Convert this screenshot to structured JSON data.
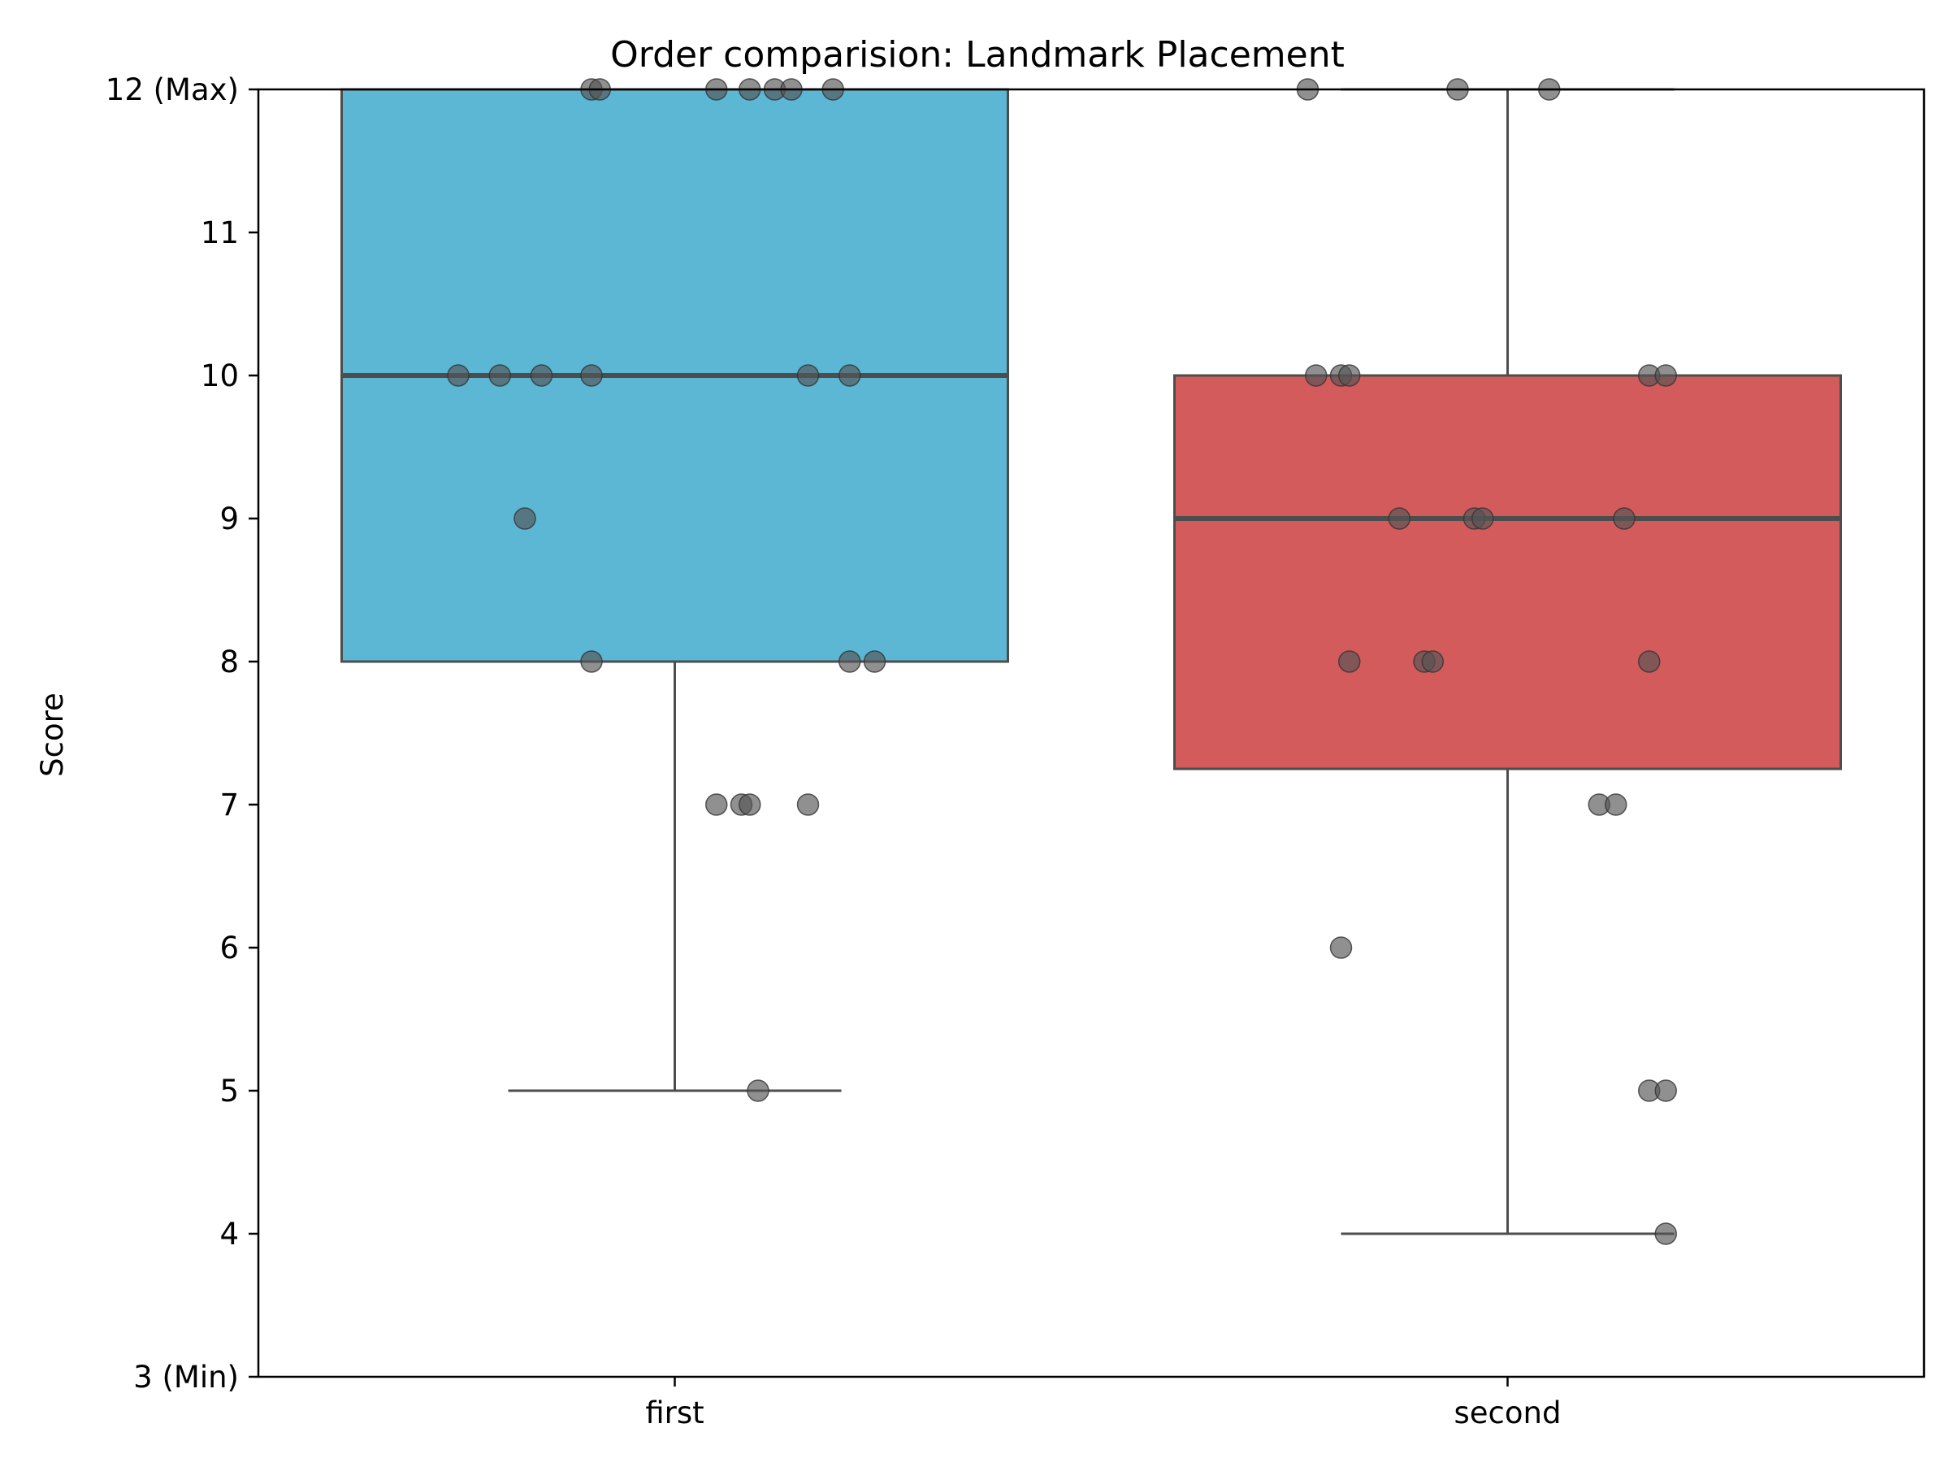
{
  "chart_data": {
    "type": "box",
    "title": "Order comparision: Landmark Placement",
    "xlabel": "",
    "ylabel": "Score",
    "ylim": [
      3,
      12
    ],
    "yticks": [
      {
        "value": 3,
        "label": "3 (Min)"
      },
      {
        "value": 4,
        "label": "4"
      },
      {
        "value": 5,
        "label": "5"
      },
      {
        "value": 6,
        "label": "6"
      },
      {
        "value": 7,
        "label": "7"
      },
      {
        "value": 8,
        "label": "8"
      },
      {
        "value": 9,
        "label": "9"
      },
      {
        "value": 10,
        "label": "10"
      },
      {
        "value": 11,
        "label": "11"
      },
      {
        "value": 12,
        "label": "12 (Max)"
      }
    ],
    "categories": [
      "first",
      "second"
    ],
    "grid": false,
    "point_color": "#555555",
    "boxes": [
      {
        "category": "first",
        "color": "#5BB7D3",
        "whisker_low": 5,
        "q1": 8,
        "median": 10,
        "q3": 12,
        "whisker_high": 12,
        "points": [
          {
            "y": 12,
            "jitter": -0.1
          },
          {
            "y": 12,
            "jitter": -0.09
          },
          {
            "y": 12,
            "jitter": 0.05
          },
          {
            "y": 12,
            "jitter": 0.09
          },
          {
            "y": 12,
            "jitter": 0.12
          },
          {
            "y": 12,
            "jitter": 0.14
          },
          {
            "y": 12,
            "jitter": 0.19
          },
          {
            "y": 10,
            "jitter": -0.26
          },
          {
            "y": 10,
            "jitter": -0.21
          },
          {
            "y": 10,
            "jitter": -0.16
          },
          {
            "y": 10,
            "jitter": -0.1
          },
          {
            "y": 10,
            "jitter": 0.16
          },
          {
            "y": 10,
            "jitter": 0.21
          },
          {
            "y": 9,
            "jitter": -0.18
          },
          {
            "y": 8,
            "jitter": -0.1
          },
          {
            "y": 8,
            "jitter": 0.21
          },
          {
            "y": 8,
            "jitter": 0.24
          },
          {
            "y": 7,
            "jitter": 0.05
          },
          {
            "y": 7,
            "jitter": 0.08
          },
          {
            "y": 7,
            "jitter": 0.09
          },
          {
            "y": 7,
            "jitter": 0.16
          },
          {
            "y": 5,
            "jitter": 0.1
          }
        ]
      },
      {
        "category": "second",
        "color": "#D45B5C",
        "whisker_low": 4,
        "q1": 7.25,
        "median": 9,
        "q3": 10,
        "whisker_high": 12,
        "points": [
          {
            "y": 12,
            "jitter": -0.24
          },
          {
            "y": 12,
            "jitter": -0.06
          },
          {
            "y": 12,
            "jitter": 0.05
          },
          {
            "y": 10,
            "jitter": -0.23
          },
          {
            "y": 10,
            "jitter": -0.2
          },
          {
            "y": 10,
            "jitter": -0.19
          },
          {
            "y": 10,
            "jitter": 0.17
          },
          {
            "y": 10,
            "jitter": 0.19
          },
          {
            "y": 9,
            "jitter": -0.13
          },
          {
            "y": 9,
            "jitter": -0.04
          },
          {
            "y": 9,
            "jitter": -0.03
          },
          {
            "y": 9,
            "jitter": 0.14
          },
          {
            "y": 8,
            "jitter": -0.19
          },
          {
            "y": 8,
            "jitter": -0.1
          },
          {
            "y": 8,
            "jitter": -0.09
          },
          {
            "y": 8,
            "jitter": 0.17
          },
          {
            "y": 7,
            "jitter": 0.11
          },
          {
            "y": 7,
            "jitter": 0.13
          },
          {
            "y": 6,
            "jitter": -0.2
          },
          {
            "y": 5,
            "jitter": 0.17
          },
          {
            "y": 5,
            "jitter": 0.19
          },
          {
            "y": 4,
            "jitter": 0.19
          }
        ]
      }
    ]
  }
}
